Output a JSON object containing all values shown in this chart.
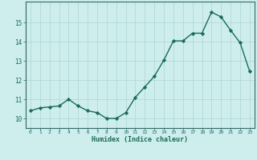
{
  "x": [
    0,
    1,
    2,
    3,
    4,
    5,
    6,
    7,
    8,
    9,
    10,
    11,
    12,
    13,
    14,
    15,
    16,
    17,
    18,
    19,
    20,
    21,
    22,
    23
  ],
  "y": [
    10.4,
    10.55,
    10.6,
    10.65,
    11.0,
    10.65,
    10.4,
    10.3,
    10.0,
    10.0,
    10.3,
    11.1,
    11.65,
    12.2,
    13.05,
    14.05,
    14.05,
    14.45,
    14.45,
    15.55,
    15.3,
    14.6,
    13.95,
    12.45
  ],
  "line_color": "#1a6b5a",
  "marker": "D",
  "markersize": 2.2,
  "linewidth": 1.0,
  "xlabel": "Humidex (Indice chaleur)",
  "xlim": [
    -0.5,
    23.5
  ],
  "ylim": [
    9.5,
    16.1
  ],
  "yticks": [
    10,
    11,
    12,
    13,
    14,
    15
  ],
  "xticks": [
    0,
    1,
    2,
    3,
    4,
    5,
    6,
    7,
    8,
    9,
    10,
    11,
    12,
    13,
    14,
    15,
    16,
    17,
    18,
    19,
    20,
    21,
    22,
    23
  ],
  "bg_color": "#ceeeed",
  "grid_color": "#aed4d4",
  "line_border_color": "#336666",
  "tick_color": "#1a6b5a",
  "label_color": "#1a6b5a"
}
